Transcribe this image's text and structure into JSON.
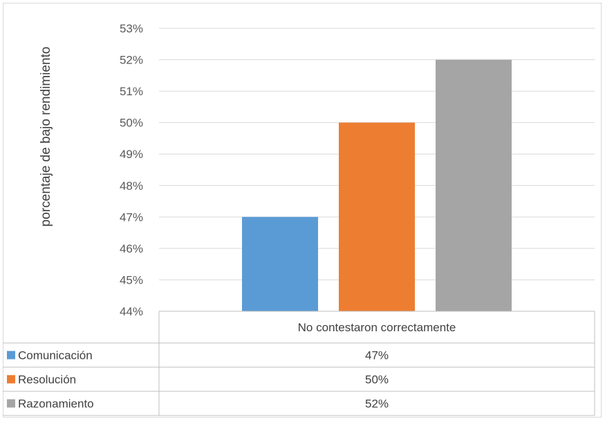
{
  "chart_data": {
    "type": "bar",
    "ylabel": "porcentaje de bajo rendimiento",
    "category_label": "No contestaron correctamente",
    "ylim": [
      0.44,
      0.53
    ],
    "y_ticks": [
      "44%",
      "45%",
      "46%",
      "47%",
      "48%",
      "49%",
      "50%",
      "51%",
      "52%",
      "53%"
    ],
    "grid": true,
    "legend": "data-table",
    "series": [
      {
        "name": "Comunicación",
        "value": 0.47,
        "label": "47%",
        "color": "#5b9bd5"
      },
      {
        "name": "Resolución",
        "value": 0.5,
        "label": "50%",
        "color": "#ed7d31"
      },
      {
        "name": "Razonamiento",
        "value": 0.52,
        "label": "52%",
        "color": "#a5a5a5"
      }
    ]
  }
}
